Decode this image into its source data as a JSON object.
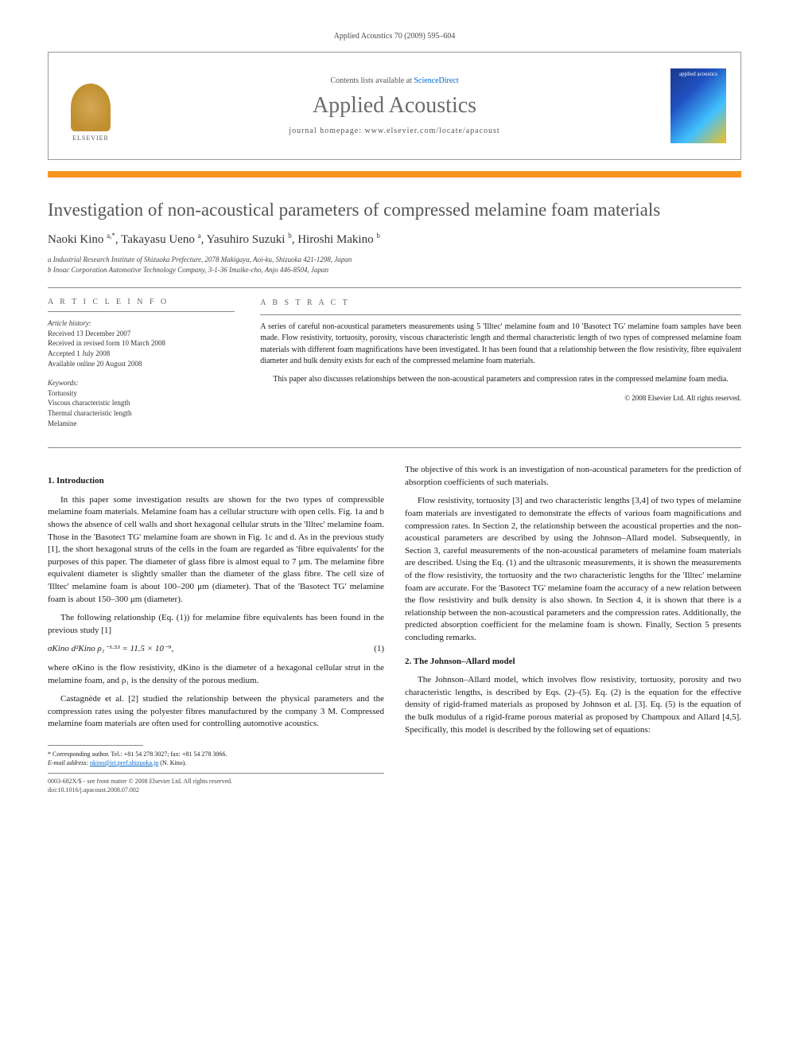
{
  "header": {
    "citation": "Applied Acoustics 70 (2009) 595–604",
    "contents_prefix": "Contents lists available at ",
    "contents_link": "ScienceDirect",
    "journal_title": "Applied Acoustics",
    "homepage_prefix": "journal homepage: ",
    "homepage_url": "www.elsevier.com/locate/apacoust",
    "publisher_label": "ELSEVIER",
    "cover_label": "applied acoustics"
  },
  "accent_color": "#f7941e",
  "article": {
    "title": "Investigation of non-acoustical parameters of compressed melamine foam materials",
    "authors_html": "Naoki Kino <sup>a,*</sup>, Takayasu Ueno <sup>a</sup>, Yasuhiro Suzuki <sup>b</sup>, Hiroshi Makino <sup>b</sup>",
    "affiliations": [
      "a Industrial Research Institute of Shizuoka Prefecture, 2078 Makigaya, Aoi-ku, Shizuoka 421-1298, Japan",
      "b Inoac Corporation Automotive Technology Company, 3-1-36 Imaike-cho, Anjo 446-8504, Japan"
    ]
  },
  "info": {
    "section_label": "A R T I C L E   I N F O",
    "history_label": "Article history:",
    "history": [
      "Received 13 December 2007",
      "Received in revised form 10 March 2008",
      "Accepted 1 July 2008",
      "Available online 20 August 2008"
    ],
    "keywords_label": "Keywords:",
    "keywords": [
      "Tortuosity",
      "Viscous characteristic length",
      "Thermal characteristic length",
      "Melamine"
    ]
  },
  "abstract": {
    "section_label": "A B S T R A C T",
    "para1": "A series of careful non-acoustical parameters measurements using 5 'Illtec' melamine foam and 10 'Basotect TG' melamine foam samples have been made. Flow resistivity, tortuosity, porosity, viscous characteristic length and thermal characteristic length of two types of compressed melamine foam materials with different foam magnifications have been investigated. It has been found that a relationship between the flow resistivity, fibre equivalent diameter and bulk density exists for each of the compressed melamine foam materials.",
    "para2": "This paper also discusses relationships between the non-acoustical parameters and compression rates in the compressed melamine foam media.",
    "copyright": "© 2008 Elsevier Ltd. All rights reserved."
  },
  "body": {
    "sec1_title": "1. Introduction",
    "sec1_p1": "In this paper some investigation results are shown for the two types of compressible melamine foam materials. Melamine foam has a cellular structure with open cells. Fig. 1a and b shows the absence of cell walls and short hexagonal cellular struts in the 'Illtec' melamine foam. Those in the 'Basotect TG' melamine foam are shown in Fig. 1c and d. As in the previous study [1], the short hexagonal struts of the cells in the foam are regarded as 'fibre equivalents' for the purposes of this paper. The diameter of glass fibre is almost equal to 7 μm. The melamine fibre equivalent diameter is slightly smaller than the diameter of the glass fibre. The cell size of 'Illtec' melamine foam is about 100–200 μm (diameter). That of the 'Basotect TG' melamine foam is about 150–300 μm (diameter).",
    "sec1_p2": "The following relationship (Eq. (1)) for melamine fibre equivalents has been found in the previous study [1]",
    "eq1": "σKino d²Kino ρ₁⁻¹·⁵³ = 11.5 × 10⁻⁹,",
    "eq1_num": "(1)",
    "sec1_p3": "where σKino is the flow resistivity, dKino is the diameter of a hexagonal cellular strut in the melamine foam, and ρ₁ is the density of the porous medium.",
    "sec1_p4": "Castagnède et al. [2] studied the relationship between the physical parameters and the compression rates using the polyester fibres manufactured by the company 3 M. Compressed melamine foam materials are often used for controlling automotive acoustics.",
    "col2_p1": "The objective of this work is an investigation of non-acoustical parameters for the prediction of absorption coefficients of such materials.",
    "col2_p2": "Flow resistivity, tortuosity [3] and two characteristic lengths [3,4] of two types of melamine foam materials are investigated to demonstrate the effects of various foam magnifications and compression rates. In Section 2, the relationship between the acoustical properties and the non-acoustical parameters are described by using the Johnson–Allard model. Subsequently, in Section 3, careful measurements of the non-acoustical parameters of melamine foam materials are described. Using the Eq. (1) and the ultrasonic measurements, it is shown the measurements of the flow resistivity, the tortuosity and the two characteristic lengths for the 'Illtec' melamine foam are accurate. For the 'Basotect TG' melamine foam the accuracy of a new relation between the flow resistivity and bulk density is also shown. In Section 4, it is shown that there is a relationship between the non-acoustical parameters and the compression rates. Additionally, the predicted absorption coefficient for the melamine foam is shown. Finally, Section 5 presents concluding remarks.",
    "sec2_title": "2. The Johnson–Allard model",
    "sec2_p1": "The Johnson–Allard model, which involves flow resistivity, tortuosity, porosity and two characteristic lengths, is described by Eqs. (2)–(5). Eq. (2) is the equation for the effective density of rigid-framed materials as proposed by Johnson et al. [3]. Eq. (5) is the equation of the bulk modulus of a rigid-frame porous material as proposed by Champoux and Allard [4,5]. Specifically, this model is described by the following set of equations:"
  },
  "footnote": {
    "corr": "* Corresponding author. Tel.: +81 54 278 3027; fax: +81 54 278 3066.",
    "email_label": "E-mail address:",
    "email": "nkino@iri.pref.shizuoka.jp",
    "email_suffix": "(N. Kino)."
  },
  "footer": {
    "left": "0003-682X/$ - see front matter © 2008 Elsevier Ltd. All rights reserved.",
    "doi": "doi:10.1016/j.apacoust.2008.07.002"
  }
}
